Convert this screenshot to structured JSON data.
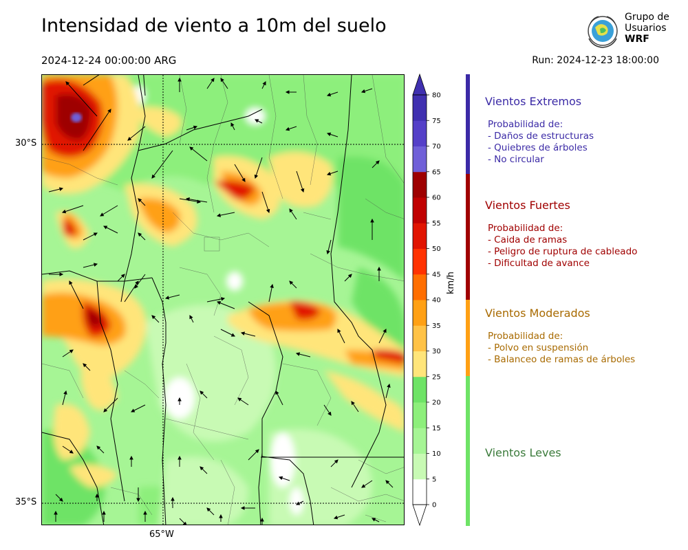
{
  "header": {
    "title": "Intensidad de viento a 10m del suelo",
    "valid_time": "2024-12-24 00:00:00 ARG",
    "run": "Run: 2024-12-23 18:00:00"
  },
  "logo": {
    "line1": "Grupo de",
    "line2": "Usuarios",
    "line3": "WRF"
  },
  "map": {
    "lat_labels": [
      "30°S",
      "35°S"
    ],
    "lon_labels": [
      "65°W"
    ]
  },
  "colorbar": {
    "units": "km/h",
    "ticks": [
      "0",
      "5",
      "10",
      "15",
      "20",
      "25",
      "30",
      "35",
      "40",
      "45",
      "50",
      "55",
      "60",
      "65",
      "70",
      "75",
      "80"
    ],
    "colors": [
      "#ffffff",
      "#c8fab4",
      "#a6f595",
      "#8def7b",
      "#6ee366",
      "#ffe57a",
      "#ffc246",
      "#ffa014",
      "#ff6e00",
      "#ff3200",
      "#e11400",
      "#c00000",
      "#9e0000",
      "#7060d8",
      "#5540c8",
      "#4030b0"
    ]
  },
  "categories": [
    {
      "title": "Vientos Extremos",
      "color": "#3b2aa6",
      "bar_color": "#3b2aa6",
      "lines": [
        "Probabilidad de:",
        "- Daños de estructuras",
        "- Quiebres de árboles",
        "- No circular"
      ]
    },
    {
      "title": "Vientos Fuertes",
      "color": "#a00000",
      "bar_color": "#a00000",
      "lines": [
        "Probabilidad de:",
        "- Caida de ramas",
        "- Peligro de ruptura de cableado",
        "- Dificultad de avance"
      ]
    },
    {
      "title": "Vientos Moderados",
      "color": "#a86a00",
      "bar_color": "#ffa014",
      "lines": [
        "Probabilidad de:",
        "- Polvo en suspensión",
        "- Balanceo de ramas de árboles"
      ]
    },
    {
      "title": "Vientos Leves",
      "color": "#3a7a3a",
      "bar_color": "#6ee366",
      "lines": []
    }
  ]
}
